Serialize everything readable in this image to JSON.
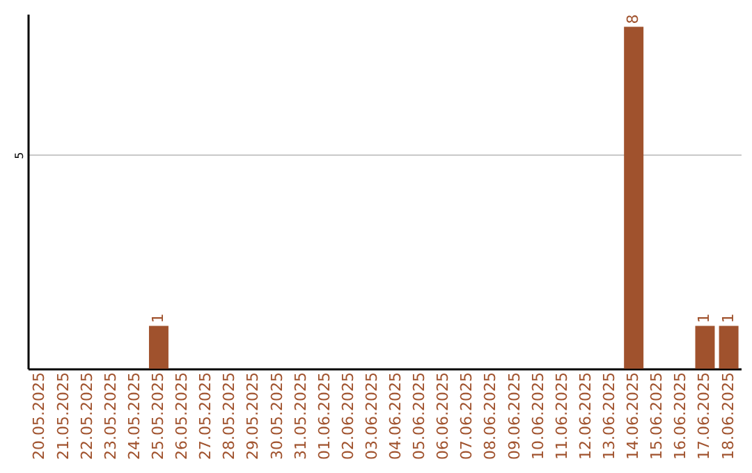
{
  "chart_data": {
    "type": "bar",
    "categories": [
      "20.05.2025",
      "21.05.2025",
      "22.05.2025",
      "23.05.2025",
      "24.05.2025",
      "25.05.2025",
      "26.05.2025",
      "27.05.2025",
      "28.05.2025",
      "29.05.2025",
      "30.05.2025",
      "31.05.2025",
      "01.06.2025",
      "02.06.2025",
      "03.06.2025",
      "04.06.2025",
      "05.06.2025",
      "06.06.2025",
      "07.06.2025",
      "08.06.2025",
      "09.06.2025",
      "10.06.2025",
      "11.06.2025",
      "12.06.2025",
      "13.06.2025",
      "14.06.2025",
      "15.06.2025",
      "16.06.2025",
      "17.06.2025",
      "18.06.2025"
    ],
    "values": [
      0,
      0,
      0,
      0,
      0,
      1,
      0,
      0,
      0,
      0,
      0,
      0,
      0,
      0,
      0,
      0,
      0,
      0,
      0,
      0,
      0,
      0,
      0,
      0,
      0,
      8,
      0,
      0,
      1,
      1
    ],
    "value_labels": [
      null,
      null,
      null,
      null,
      null,
      "1",
      null,
      null,
      null,
      null,
      null,
      null,
      null,
      null,
      null,
      null,
      null,
      null,
      null,
      null,
      null,
      null,
      null,
      null,
      null,
      "8",
      null,
      null,
      "1",
      "1"
    ],
    "color": "#a0522d",
    "ylim": [
      0,
      8.3
    ],
    "yticks": [
      5
    ],
    "grid": "y"
  }
}
